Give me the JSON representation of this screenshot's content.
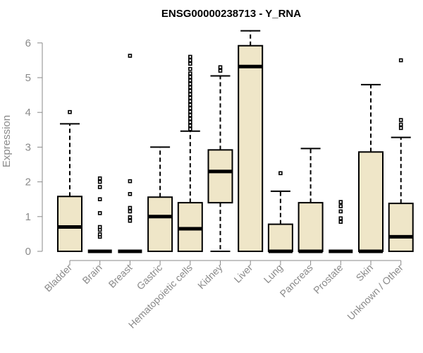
{
  "chart_data": {
    "type": "box",
    "title": "ENSG00000238713 - Y_RNA",
    "xlabel": "",
    "ylabel": "Expression",
    "ylim": [
      0,
      6.3
    ],
    "yticks": [
      0,
      1,
      2,
      3,
      4,
      5,
      6
    ],
    "grid": false,
    "legend": "none",
    "colors": {
      "box_fill": "#efe6c8",
      "box_stroke": "#000000",
      "axis": "#8a8a8a"
    },
    "categories": [
      "Bladder",
      "Brain",
      "Breast",
      "Gastric",
      "Hematopoietic cells",
      "Kidney",
      "Liver",
      "Lung",
      "Pancreas",
      "Prostate",
      "Skin",
      "Unknown / Other"
    ],
    "boxes": [
      {
        "q1": 0.0,
        "median": 0.7,
        "q3": 1.58,
        "whisker_low": 0.0,
        "whisker_high": 3.67,
        "outliers": [
          4.01
        ]
      },
      {
        "q1": 0.0,
        "median": 0.0,
        "q3": 0.0,
        "whisker_low": 0.0,
        "whisker_high": 0.0,
        "outliers": [
          0.42,
          0.49,
          0.62,
          0.7,
          1.1,
          1.5,
          1.85,
          2.0,
          2.1
        ]
      },
      {
        "q1": 0.0,
        "median": 0.0,
        "q3": 0.0,
        "whisker_low": 0.0,
        "whisker_high": 0.0,
        "outliers": [
          0.88,
          0.98,
          1.15,
          1.25,
          1.65,
          2.02,
          5.63
        ]
      },
      {
        "q1": 0.0,
        "median": 1.0,
        "q3": 1.56,
        "whisker_low": 0.0,
        "whisker_high": 3.0,
        "outliers": []
      },
      {
        "q1": 0.0,
        "median": 0.65,
        "q3": 1.4,
        "whisker_low": 0.0,
        "whisker_high": 3.46,
        "outliers": [
          3.52,
          3.62,
          3.72,
          3.82,
          3.92,
          4.02,
          4.12,
          4.22,
          4.32,
          4.42,
          4.52,
          4.62,
          4.72,
          4.82,
          4.92,
          5.02,
          5.12,
          5.25,
          5.4,
          5.5,
          5.6
        ]
      },
      {
        "q1": 1.4,
        "median": 2.3,
        "q3": 2.92,
        "whisker_low": 0.0,
        "whisker_high": 5.05,
        "outliers": [
          5.2,
          5.3
        ]
      },
      {
        "q1": 0.0,
        "median": 5.32,
        "q3": 5.92,
        "whisker_low": 0.0,
        "whisker_high": 6.35,
        "outliers": []
      },
      {
        "q1": 0.0,
        "median": 0.0,
        "q3": 0.78,
        "whisker_low": 0.0,
        "whisker_high": 1.73,
        "outliers": [
          2.25
        ]
      },
      {
        "q1": 0.0,
        "median": 0.0,
        "q3": 1.4,
        "whisker_low": 0.0,
        "whisker_high": 2.96,
        "outliers": []
      },
      {
        "q1": 0.0,
        "median": 0.0,
        "q3": 0.0,
        "whisker_low": 0.0,
        "whisker_high": 0.0,
        "outliers": [
          0.85,
          0.95,
          1.15,
          1.3,
          1.42
        ]
      },
      {
        "q1": 0.0,
        "median": 0.0,
        "q3": 2.86,
        "whisker_low": 0.0,
        "whisker_high": 4.8,
        "outliers": []
      },
      {
        "q1": 0.0,
        "median": 0.42,
        "q3": 1.38,
        "whisker_low": 0.0,
        "whisker_high": 3.28,
        "outliers": [
          3.55,
          3.65,
          3.78,
          5.5
        ]
      }
    ]
  }
}
